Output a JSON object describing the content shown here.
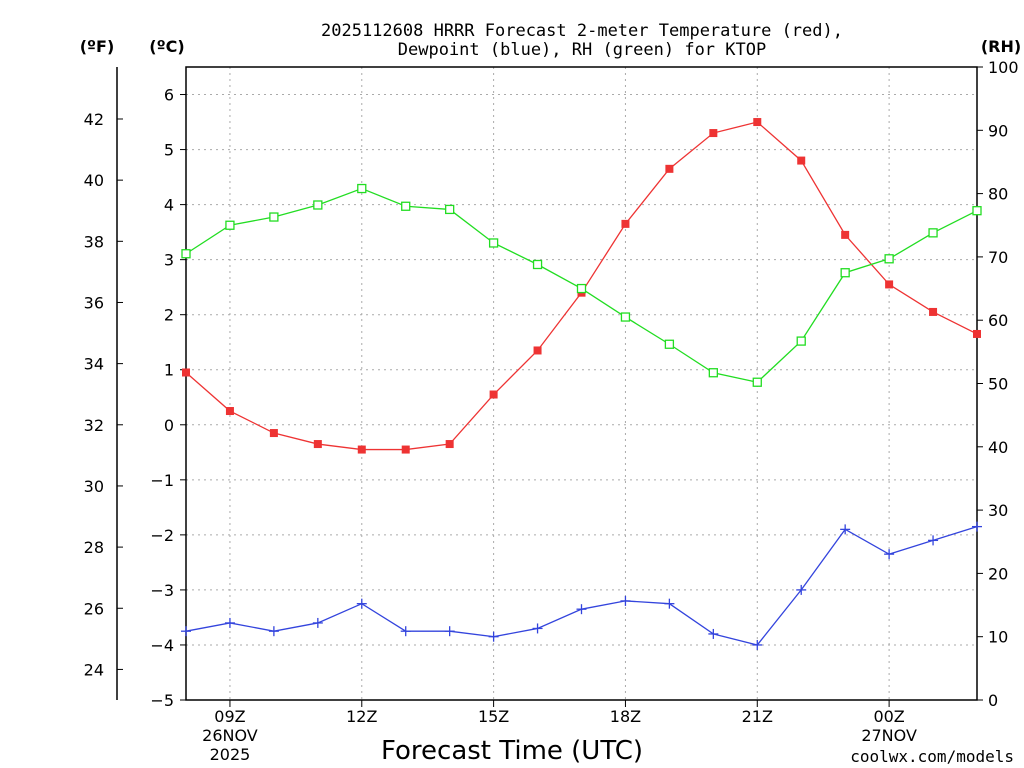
{
  "chart_data": {
    "type": "line",
    "title_line1": "2025112608 HRRR Forecast 2-meter Temperature (red),",
    "title_line2": "Dewpoint (blue), RH (green) for KTOP",
    "xlabel": "Forecast Time (UTC)",
    "credit": "coolwx.com/models",
    "colors": {
      "temperature": "#ee3333",
      "dewpoint": "#3344dd",
      "rh": "#22dd22",
      "grid": "#aaaaaa"
    },
    "x_hours": [
      8,
      9,
      10,
      11,
      12,
      13,
      14,
      15,
      16,
      17,
      18,
      19,
      20,
      21,
      22,
      23,
      24,
      25,
      26
    ],
    "x_range": [
      8,
      26
    ],
    "x_ticks": [
      {
        "hour": 9,
        "lines": [
          "09Z",
          "26NOV",
          "2025"
        ]
      },
      {
        "hour": 12,
        "lines": [
          "12Z"
        ]
      },
      {
        "hour": 15,
        "lines": [
          "15Z"
        ]
      },
      {
        "hour": 18,
        "lines": [
          "18Z"
        ]
      },
      {
        "hour": 21,
        "lines": [
          "21Z"
        ]
      },
      {
        "hour": 24,
        "lines": [
          "00Z",
          "27NOV"
        ]
      }
    ],
    "celsius_axis": {
      "unit_label": "(ºC)",
      "range": [
        -5,
        6.5
      ],
      "ticks": [
        "-5",
        "-4",
        "-3",
        "-2",
        "-1",
        "0",
        "1",
        "2",
        "3",
        "4",
        "5",
        "6"
      ]
    },
    "fahrenheit_axis": {
      "unit_label": "(ºF)",
      "ticks": [
        "24",
        "26",
        "28",
        "30",
        "32",
        "34",
        "36",
        "38",
        "40",
        "42"
      ]
    },
    "rh_axis": {
      "unit_label": "(RH)",
      "range": [
        0,
        100
      ],
      "ticks": [
        "0",
        "10",
        "20",
        "30",
        "40",
        "50",
        "60",
        "70",
        "80",
        "90",
        "100"
      ]
    },
    "series": [
      {
        "name": "Temperature",
        "unit": "C",
        "values": [
          0.95,
          0.25,
          -0.15,
          -0.35,
          -0.45,
          -0.45,
          -0.35,
          0.55,
          1.35,
          2.4,
          3.65,
          4.65,
          5.3,
          5.5,
          4.8,
          3.45,
          2.55,
          2.05,
          1.65
        ]
      },
      {
        "name": "Dewpoint",
        "unit": "C",
        "values": [
          -3.75,
          -3.6,
          -3.75,
          -3.6,
          -3.25,
          -3.75,
          -3.75,
          -3.85,
          -3.7,
          -3.35,
          -3.2,
          -3.25,
          -3.8,
          -4.0,
          -3.0,
          -1.9,
          -2.35,
          -2.1,
          -1.85
        ]
      },
      {
        "name": "RH",
        "unit": "%",
        "values": [
          70.5,
          75.0,
          76.3,
          78.2,
          80.8,
          78.0,
          77.5,
          72.2,
          68.8,
          65.0,
          60.5,
          56.2,
          51.7,
          50.2,
          56.7,
          67.5,
          69.7,
          73.8,
          77.3
        ]
      }
    ]
  }
}
